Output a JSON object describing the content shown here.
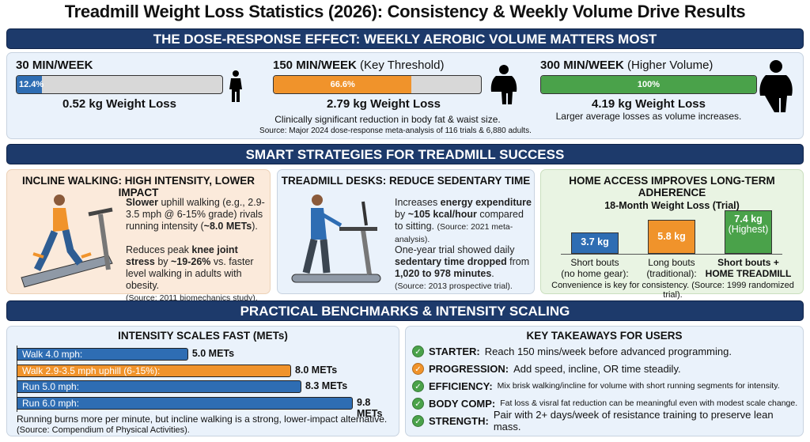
{
  "title": "Treadmill Weight Loss Statistics (2026): Consistency & Weekly Volume Drive Results",
  "colors": {
    "navy": "#1d3a6b",
    "blue": "#2e6db3",
    "orange": "#f0932b",
    "green": "#4aa24a"
  },
  "dose": {
    "header": "THE DOSE-RESPONSE EFFECT: WEEKLY AEROBIC VOLUME MATTERS MOST",
    "items": [
      {
        "label": "30 MIN/WEEK",
        "sub": "",
        "percent": 12.4,
        "percent_label": "12.4%",
        "loss": "0.52 kg Weight Loss",
        "note": "",
        "color": "#2e6db3",
        "icon": "person-slim-icon"
      },
      {
        "label": "150 MIN/WEEK",
        "sub": "(Key Threshold)",
        "percent": 66.6,
        "percent_label": "66.6%",
        "loss": "2.79 kg Weight Loss",
        "note": "Clinically significant reduction in body fat & waist size.",
        "color": "#f0932b",
        "icon": "person-medium-icon"
      },
      {
        "label": "300 MIN/WEEK",
        "sub": "(Higher Volume)",
        "percent": 100,
        "percent_label": "100%",
        "loss": "4.19 kg Weight Loss",
        "note": "Larger average losses as volume increases.",
        "color": "#4aa24a",
        "icon": "person-large-icon"
      }
    ],
    "source": "Source: Major 2024 dose-response meta-analysis of 116 trials & 6,880 adults."
  },
  "strategies": {
    "header": "SMART STRATEGIES FOR TREADMILL SUCCESS",
    "incline": {
      "title": "INCLINE WALKING: HIGH INTENSITY, LOWER IMPACT",
      "p1_bold": "Slower",
      "p1_a": " uphill walking (e.g., 2.9-3.5 mph @ 6-15% grade) rivals running intensity (",
      "p1_bold2": "~8.0 METs",
      "p1_b": ").",
      "p2_a": "Reduces peak ",
      "p2_bold": "knee joint stress",
      "p2_b": " by ",
      "p2_bold2": "~19-26%",
      "p2_c": " vs. faster level walking in adults with obesity.",
      "source": "(Source: 2011 biomechanics study)."
    },
    "desks": {
      "title": "TREADMILL DESKS: REDUCE SEDENTARY TIME",
      "p1_a": "Increases ",
      "p1_bold": "energy expenditure",
      "p1_b": " by ",
      "p1_bold2": "~105 kcal/hour",
      "p1_c": " compared to sitting. ",
      "p1_src": "(Source: 2021 meta-analysis).",
      "p2_a": "One-year trial showed daily ",
      "p2_bold": "sedentary time dropped",
      "p2_b": " from ",
      "p2_bold2": "1,020 to 978 minutes",
      "p2_c": ".",
      "source": "(Source: 2013 prospective trial)."
    },
    "home": {
      "title": "HOME ACCESS IMPROVES LONG-TERM ADHERENCE",
      "chart_title": "18-Month Weight Loss (Trial)",
      "bars": [
        {
          "value": 3.7,
          "label": "3.7 kg",
          "extra": "",
          "cat1": "Short bouts",
          "cat2": "(no home gear):",
          "bold": false,
          "color": "#2e6db3"
        },
        {
          "value": 5.8,
          "label": "5.8 kg",
          "extra": "",
          "cat1": "Long bouts",
          "cat2": "(traditional):",
          "bold": false,
          "color": "#f0932b"
        },
        {
          "value": 7.4,
          "label": "7.4 kg",
          "extra": "(Highest)",
          "cat1": "Short bouts +",
          "cat2": "HOME TREADMILL",
          "bold": true,
          "color": "#4aa24a"
        }
      ],
      "note": "Convenience is key for consistency. (Source: 1999 randomized trial)."
    }
  },
  "benchmarks": {
    "header": "PRACTICAL BENCHMARKS & INTENSITY SCALING",
    "mets": {
      "title": "INTENSITY SCALES FAST (METs)",
      "bars": [
        {
          "label": "Walk 4.0 mph:",
          "value": 5.0,
          "value_label": "5.0 METs",
          "color": "#2e6db3"
        },
        {
          "label": "Walk 2.9-3.5 mph uphill (6-15%):",
          "value": 8.0,
          "value_label": "8.0 METs",
          "color": "#f0932b"
        },
        {
          "label": "Run 5.0 mph:",
          "value": 8.3,
          "value_label": "8.3 METs",
          "color": "#2e6db3"
        },
        {
          "label": "Run 6.0 mph:",
          "value": 9.8,
          "value_label": "9.8 METs",
          "color": "#2e6db3"
        }
      ],
      "note": "Running burns more per minute, but incline walking is a strong, lower-impact alternative.",
      "source": "(Source: Compendium of Physical Activities)."
    },
    "takeaways": {
      "title": "KEY TAKEAWAYS FOR USERS",
      "items": [
        {
          "key": "STARTER:",
          "text": "Reach 150 mins/week before advanced programming.",
          "color": "#4aa24a",
          "small": false
        },
        {
          "key": "PROGRESSION:",
          "text": "Add speed, incline, OR time steadily.",
          "color": "#f0932b",
          "small": false
        },
        {
          "key": "EFFICIENCY:",
          "text": "Mix brisk walking/incline for volume with short running segments for intensity.",
          "color": "#4aa24a",
          "small": true
        },
        {
          "key": "BODY COMP:",
          "text": "Fat loss & visral fat reduction can be meaningful even with modest scale change.",
          "color": "#4aa24a",
          "small": true
        },
        {
          "key": "STRENGTH:",
          "text": "Pair with 2+ days/week of resistance training to preserve lean mass.",
          "color": "#4aa24a",
          "small": false
        }
      ]
    }
  }
}
